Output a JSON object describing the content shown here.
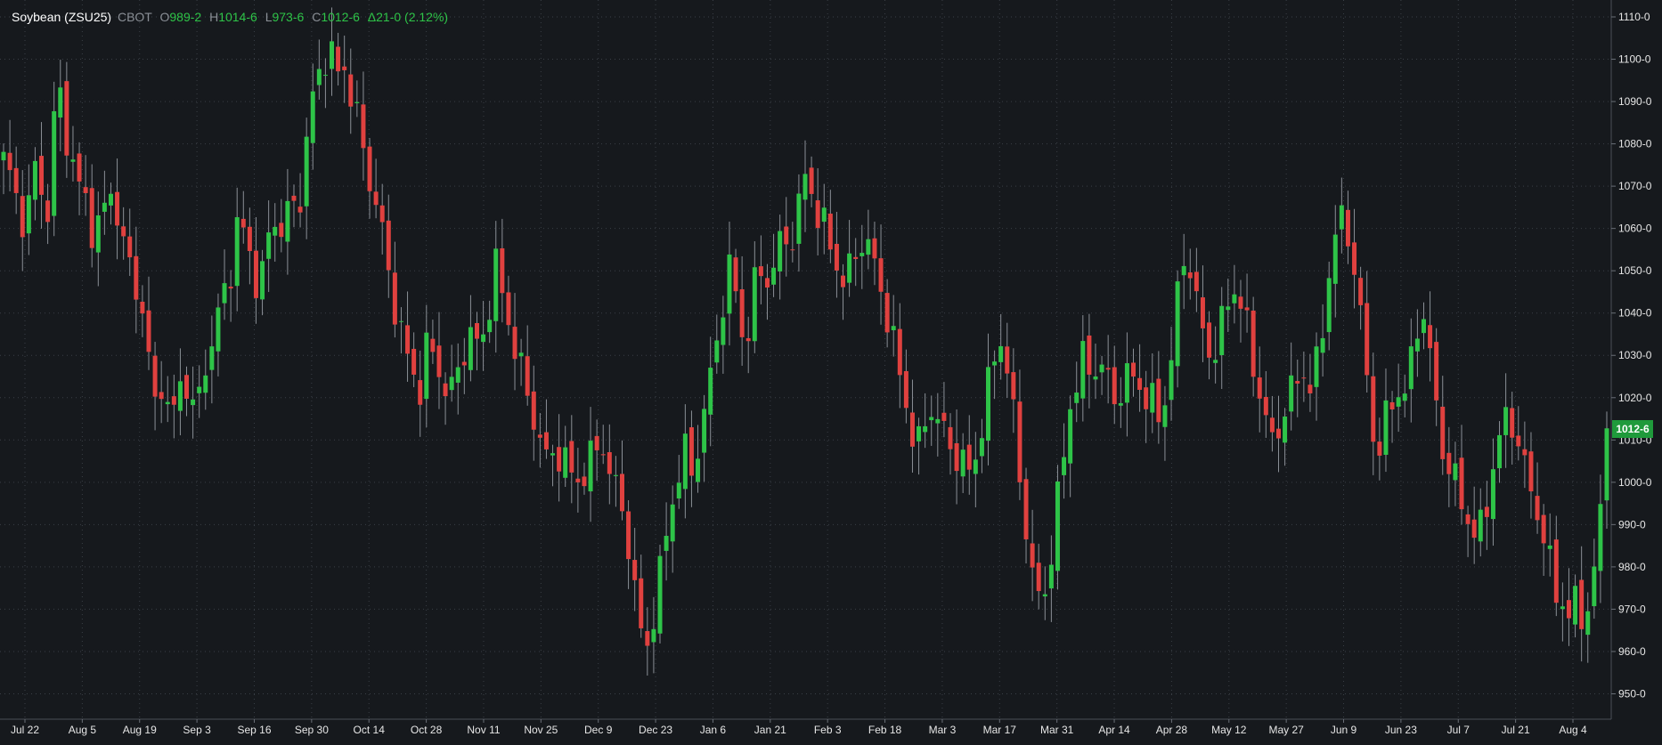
{
  "legend": {
    "symbol": "Soybean (ZSU25)",
    "exchange": "CBOT",
    "open_label": "O",
    "open": "989-2",
    "high_label": "H",
    "high": "1014-6",
    "low_label": "L",
    "low": "973-6",
    "close_label": "C",
    "close": "1012-6",
    "change": "Δ21-0 (2.12%)"
  },
  "last_price_tag": "1012-6",
  "colors": {
    "background": "#16191d",
    "up": "#2ec448",
    "down": "#e0413f",
    "grid": "#3a3f46",
    "axis_text": "#e6e6e6",
    "price_tag": "#1f9a3b"
  },
  "chart_data": {
    "type": "candlestick",
    "title": "Soybean (ZSU25)",
    "y_axis_position": "right",
    "ylim": [
      944,
      1114
    ],
    "grid": true,
    "x_tick_labels": [
      "Jul 22",
      "Aug 5",
      "Aug 19",
      "Sep 3",
      "Sep 16",
      "Sep 30",
      "Oct 14",
      "Oct 28",
      "Nov 11",
      "Nov 25",
      "Dec 9",
      "Dec 23",
      "Jan 6",
      "Jan 21",
      "Feb 3",
      "Feb 18",
      "Mar 3",
      "Mar 17",
      "Mar 31",
      "Apr 14",
      "Apr 28",
      "May 12",
      "May 27",
      "Jun 9",
      "Jun 23",
      "Jul 7",
      "Jul 21",
      "Aug 4"
    ],
    "y_tick_labels": [
      "950-0",
      "960-0",
      "970-0",
      "980-0",
      "990-0",
      "1000-0",
      "1010-0",
      "1020-0",
      "1030-0",
      "1040-0",
      "1050-0",
      "1060-0",
      "1070-0",
      "1080-0",
      "1090-0",
      "1100-0",
      "1110-0"
    ],
    "y_tick_values": [
      950,
      960,
      970,
      980,
      990,
      1000,
      1010,
      1020,
      1030,
      1040,
      1050,
      1060,
      1070,
      1080,
      1090,
      1100,
      1110
    ],
    "close_path": [
      1076,
      1072,
      1065,
      1060,
      1075,
      1070,
      1062,
      1097,
      1085,
      1076,
      1070,
      1066,
      1058,
      1062,
      1070,
      1064,
      1054,
      1050,
      1044,
      1032,
      1018,
      1026,
      1012,
      1022,
      1026,
      1016,
      1022,
      1030,
      1036,
      1044,
      1050,
      1062,
      1058,
      1050,
      1046,
      1058,
      1062,
      1060,
      1066,
      1064,
      1080,
      1092,
      1098,
      1104,
      1096,
      1098,
      1092,
      1084,
      1074,
      1068,
      1060,
      1048,
      1040,
      1032,
      1026,
      1022,
      1032,
      1030,
      1024,
      1020,
      1026,
      1032,
      1036,
      1030,
      1040,
      1052,
      1044,
      1036,
      1030,
      1022,
      1016,
      1010,
      1004,
      1008,
      1006,
      1002,
      1000,
      1004,
      1006,
      1010,
      1004,
      998,
      992,
      982,
      966,
      960,
      970,
      980,
      992,
      1000,
      1008,
      1002,
      1010,
      1020,
      1030,
      1042,
      1050,
      1044,
      1030,
      1044,
      1050,
      1048,
      1052,
      1058,
      1056,
      1064,
      1072,
      1068,
      1062,
      1058,
      1052,
      1048,
      1050,
      1056,
      1058,
      1052,
      1046,
      1038,
      1030,
      1022,
      1012,
      1008,
      1016,
      1018,
      1012,
      1010,
      1006,
      1004,
      1002,
      1010,
      1020,
      1030,
      1034,
      1024,
      1008,
      992,
      978,
      972,
      976,
      990,
      1004,
      1018,
      1024,
      1030,
      1026,
      1028,
      1024,
      1020,
      1022,
      1026,
      1024,
      1020,
      1018,
      1016,
      1022,
      1040,
      1054,
      1050,
      1040,
      1032,
      1030,
      1036,
      1044,
      1046,
      1040,
      1030,
      1022,
      1014,
      1008,
      1016,
      1020,
      1024,
      1026,
      1022,
      1030,
      1046,
      1058,
      1062,
      1058,
      1046,
      1030,
      1012,
      1008,
      1016,
      1022,
      1020,
      1026,
      1038,
      1040,
      1024,
      1010,
      1004,
      1000,
      994,
      990,
      986,
      994,
      1004,
      1012,
      1016,
      1012,
      1004,
      998,
      992,
      984,
      976,
      972,
      968,
      972,
      968,
      972,
      990,
      1012
    ]
  }
}
